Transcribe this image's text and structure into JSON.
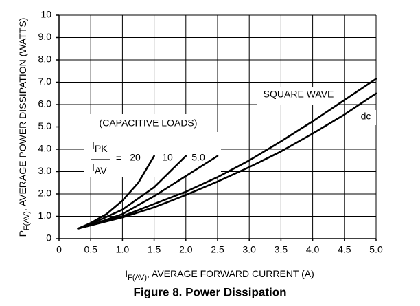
{
  "chart_data": {
    "type": "line",
    "title": "Figure 8. Power Dissipation",
    "ylabel": {
      "main": "P",
      "sub": "F(AV)",
      "rest": ", AVERAGE POWER DISSIPATION (WATTS)"
    },
    "xlabel": {
      "main": "I",
      "sub": "F(AV)",
      "rest": ", AVERAGE FORWARD CURRENT (A)"
    },
    "annotations": {
      "loads": "(CAPACITIVE LOADS)",
      "ratio": {
        "numerator": "I",
        "numerator_sub": "PK",
        "denominator": "I",
        "denominator_sub": "AV",
        "equals": "="
      }
    },
    "xlim": [
      0,
      5
    ],
    "ylim": [
      0,
      10
    ],
    "xticks": [
      0,
      0.5,
      {
        "value": 1,
        "label": "1.0"
      },
      1.5,
      {
        "value": 2,
        "label": "2.0"
      },
      2.5,
      {
        "value": 3,
        "label": "3.0"
      },
      3.5,
      {
        "value": 4,
        "label": "4.0"
      },
      4.5,
      {
        "value": 5,
        "label": "5.0"
      }
    ],
    "yticks": [
      0,
      {
        "value": 1,
        "label": "1.0"
      },
      {
        "value": 2,
        "label": "2.0"
      },
      {
        "value": 3,
        "label": "3.0"
      },
      {
        "value": 4,
        "label": "4.0"
      },
      {
        "value": 5,
        "label": "5.0"
      },
      {
        "value": 6,
        "label": "6.0"
      },
      {
        "value": 7,
        "label": "7.0"
      },
      {
        "value": 8,
        "label": "8.0"
      },
      {
        "value": 9,
        "label": "9.0"
      },
      10
    ],
    "grid": true,
    "series": [
      {
        "name": "20",
        "color": "#000000",
        "x": [
          0.3,
          0.5,
          0.75,
          1.0,
          1.25,
          1.5
        ],
        "values": [
          0.45,
          0.7,
          1.1,
          1.7,
          2.5,
          3.7
        ]
      },
      {
        "name": "10",
        "color": "#000000",
        "x": [
          0.3,
          0.5,
          1.0,
          1.5,
          2.0
        ],
        "values": [
          0.45,
          0.65,
          1.3,
          2.3,
          3.7
        ]
      },
      {
        "name": "5.0",
        "color": "#000000",
        "x": [
          0.3,
          0.5,
          1.0,
          1.5,
          2.0,
          2.5
        ],
        "values": [
          0.45,
          0.6,
          1.1,
          1.9,
          2.8,
          3.7
        ]
      },
      {
        "name": "SQUARE WAVE",
        "color": "#000000",
        "x": [
          0.3,
          0.5,
          1.0,
          1.5,
          2.0,
          2.5,
          3.0,
          3.5,
          4.0,
          4.5,
          5.0
        ],
        "values": [
          0.45,
          0.6,
          1.0,
          1.55,
          2.1,
          2.75,
          3.5,
          4.35,
          5.25,
          6.2,
          7.15
        ]
      },
      {
        "name": "dc",
        "color": "#000000",
        "x": [
          0.3,
          1.0,
          1.5,
          2.0,
          2.5,
          3.0,
          3.5,
          4.0,
          4.5,
          5.0
        ],
        "values": [
          0.45,
          0.95,
          1.4,
          1.95,
          2.55,
          3.2,
          3.9,
          4.7,
          5.55,
          6.5
        ]
      }
    ]
  }
}
